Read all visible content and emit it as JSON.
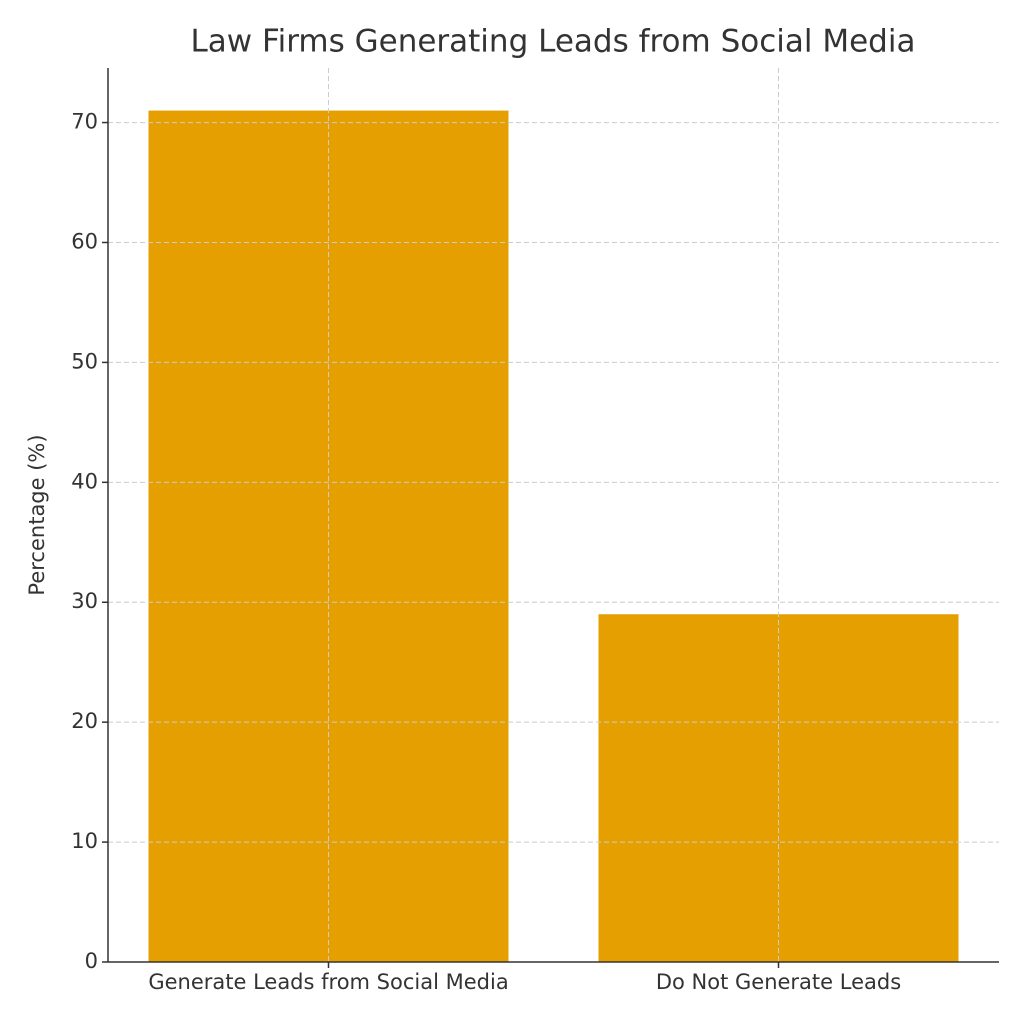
{
  "chart_data": {
    "type": "bar",
    "title": "Law Firms Generating Leads from Social Media",
    "y_label": "Percentage (%)",
    "categories": [
      "Generate Leads from Social Media",
      "Do Not Generate Leads"
    ],
    "values": [
      71,
      29
    ],
    "color": "#e69f00",
    "ylim": [
      0,
      74.55
    ],
    "yticks": [
      0,
      10,
      20,
      30,
      40,
      50,
      60,
      70
    ],
    "grid": true
  }
}
